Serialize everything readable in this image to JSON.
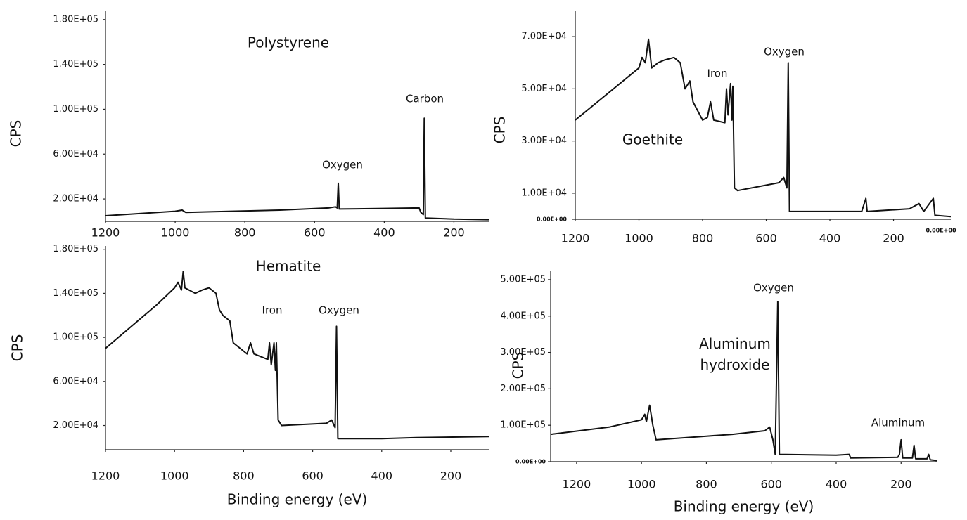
{
  "chart_data": [
    {
      "type": "line",
      "title": "Polystyrene",
      "ylabel": "CPS",
      "color": "#111111",
      "x": [
        1200,
        1000,
        980,
        970,
        900,
        700,
        560,
        540,
        535,
        532,
        529,
        400,
        300,
        295,
        288,
        285,
        282,
        200,
        100
      ],
      "values": [
        5000,
        9000,
        10000,
        8000,
        8500,
        10000,
        12000,
        13000,
        12000,
        34000,
        11000,
        11500,
        12000,
        8000,
        6000,
        92000,
        3000,
        2000,
        1500
      ],
      "xlim": [
        1200,
        100
      ],
      "xticks": [
        1200,
        1000,
        800,
        600,
        400,
        200
      ],
      "ylim": [
        0,
        188000
      ],
      "yticks": [
        {
          "value": 20000,
          "label": "2.00E+04"
        },
        {
          "value": 60000,
          "label": "6.00E+04"
        },
        {
          "value": 100000,
          "label": "1.00E+05"
        },
        {
          "value": 140000,
          "label": "1.40E+05"
        },
        {
          "value": 180000,
          "label": "1.80E+05"
        }
      ],
      "annotations": [
        "Oxygen",
        "Carbon"
      ]
    },
    {
      "type": "line",
      "title": "Goethite",
      "ylabel": "CPS",
      "color": "#111111",
      "x": [
        1200,
        1000,
        990,
        980,
        970,
        960,
        940,
        920,
        890,
        870,
        855,
        840,
        830,
        800,
        785,
        775,
        765,
        730,
        725,
        720,
        712,
        708,
        705,
        700,
        690,
        560,
        545,
        535,
        531,
        527,
        300,
        287,
        283,
        150,
        120,
        105,
        75,
        70,
        20
      ],
      "values": [
        38000,
        58000,
        62000,
        60000,
        69000,
        58000,
        60000,
        61000,
        62000,
        60000,
        50000,
        53000,
        45000,
        38000,
        39000,
        45000,
        38000,
        37000,
        50000,
        40000,
        52000,
        38000,
        51000,
        12000,
        11000,
        14000,
        16000,
        12000,
        60000,
        3000,
        3000,
        8000,
        3000,
        4000,
        6000,
        3000,
        8000,
        1500,
        1000
      ],
      "xlim": [
        1200,
        20
      ],
      "xticks": [
        1200,
        1000,
        800,
        600,
        400,
        200
      ],
      "ylim": [
        0,
        80000
      ],
      "yticks": [
        {
          "value": 0,
          "label": "0.00E+00"
        },
        {
          "value": 10000,
          "label": "1.00E+04"
        },
        {
          "value": 30000,
          "label": "3.00E+04"
        },
        {
          "value": 50000,
          "label": "5.00E+04"
        },
        {
          "value": 70000,
          "label": "7.00E+04"
        }
      ],
      "annotations": [
        "Iron",
        "Oxygen",
        "0.00E+00"
      ]
    },
    {
      "type": "line",
      "title": "Hematite",
      "ylabel": "CPS",
      "xlabel": "Binding energy (eV)",
      "color": "#111111",
      "x": [
        1200,
        1050,
        1000,
        990,
        980,
        975,
        970,
        940,
        920,
        900,
        880,
        870,
        860,
        840,
        830,
        790,
        780,
        770,
        730,
        725,
        720,
        712,
        708,
        705,
        700,
        690,
        560,
        545,
        535,
        531,
        527,
        400,
        300,
        90
      ],
      "values": [
        90000,
        130000,
        145000,
        150000,
        143000,
        160000,
        145000,
        140000,
        143000,
        145000,
        140000,
        125000,
        120000,
        115000,
        95000,
        85000,
        95000,
        85000,
        80000,
        95000,
        75000,
        95000,
        70000,
        95000,
        25000,
        20000,
        22000,
        25000,
        18000,
        110000,
        8000,
        8000,
        9000,
        10000
      ],
      "xlim": [
        1200,
        90
      ],
      "xticks": [
        1200,
        1000,
        800,
        600,
        400,
        200
      ],
      "ylim": [
        -2000,
        183000
      ],
      "yticks": [
        {
          "value": 20000,
          "label": "2.00E+04"
        },
        {
          "value": 60000,
          "label": "6.00E+04"
        },
        {
          "value": 100000,
          "label": "1.00E+05"
        },
        {
          "value": 140000,
          "label": "1.40E+05"
        },
        {
          "value": 180000,
          "label": "1.80E+05"
        }
      ],
      "annotations": [
        "Iron",
        "Oxygen"
      ]
    },
    {
      "type": "line",
      "title": "Aluminum hydroxide",
      "ylabel": "CPS",
      "xlabel": "Binding energy (eV)",
      "color": "#111111",
      "x": [
        1280,
        1100,
        1000,
        990,
        985,
        975,
        965,
        955,
        800,
        720,
        620,
        605,
        595,
        588,
        580,
        575,
        400,
        360,
        355,
        210,
        205,
        200,
        195,
        165,
        160,
        155,
        120,
        115,
        110,
        90
      ],
      "values": [
        75000,
        95000,
        115000,
        130000,
        110000,
        155000,
        100000,
        60000,
        70000,
        75000,
        85000,
        95000,
        60000,
        20000,
        440000,
        20000,
        18000,
        20000,
        10000,
        12000,
        20000,
        60000,
        10000,
        10000,
        45000,
        8000,
        8000,
        20000,
        5000,
        3000
      ],
      "xlim": [
        1280,
        90
      ],
      "xticks": [
        1200,
        1000,
        800,
        600,
        400,
        200
      ],
      "ylim": [
        0,
        525000
      ],
      "yticks": [
        {
          "value": 0,
          "label": "0.00E+00"
        },
        {
          "value": 100000,
          "label": "1.00E+05"
        },
        {
          "value": 200000,
          "label": "2.00E+05"
        },
        {
          "value": 300000,
          "label": "3.00E+05"
        },
        {
          "value": 400000,
          "label": "4.00E+05"
        },
        {
          "value": 500000,
          "label": "5.00E+05"
        }
      ],
      "annotations": [
        "Oxygen",
        "Aluminum"
      ]
    }
  ]
}
